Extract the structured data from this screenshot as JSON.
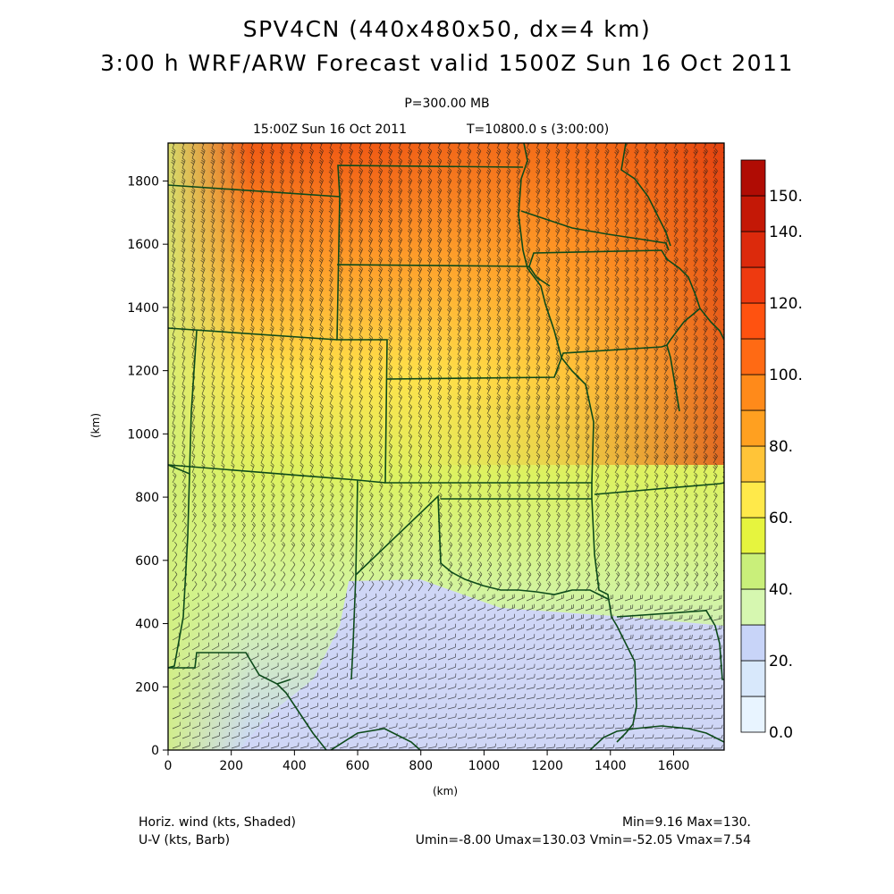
{
  "header": {
    "title1": "SPV4CN (440x480x50, dx=4 km)",
    "title2": "3:00 h WRF/ARW Forecast valid 1500Z Sun 16 Oct 2011",
    "level": "P=300.00 MB",
    "valid": "15:00Z Sun 16 Oct 2011",
    "time": "T=10800.0 s (3:00:00)"
  },
  "axes": {
    "xlabel": "(km)",
    "ylabel": "(km)",
    "x_ticks": [
      "0",
      "200",
      "400",
      "600",
      "800",
      "1000",
      "1200",
      "1400",
      "1600"
    ],
    "y_ticks": [
      "0",
      "200",
      "400",
      "600",
      "800",
      "1000",
      "1200",
      "1400",
      "1600",
      "1800"
    ],
    "x_range": [
      0,
      1760
    ],
    "y_range": [
      0,
      1920
    ]
  },
  "colorbar": {
    "labels": [
      "0.0",
      "20.",
      "40.",
      "60.",
      "80.",
      "100.",
      "120.",
      "140.",
      "150."
    ],
    "colors": [
      "#e8f4ff",
      "#d8e8fb",
      "#c8d4f8",
      "#d6f7b0",
      "#c9ef7a",
      "#e6f43e",
      "#ffe94a",
      "#ffc438",
      "#ffa020",
      "#ff8a1a",
      "#ff6a14",
      "#ff5210",
      "#ee3a10",
      "#dc2a0c",
      "#c41806",
      "#b00c04"
    ]
  },
  "footer": {
    "field1": "Horiz. wind (kts, Shaded)",
    "field2": "U-V (kts, Barb)",
    "minmax": "Min=9.16 Max=130.",
    "uvrange": "Umin=-8.00 Umax=130.03 Vmin=-52.05 Vmax=7.54"
  },
  "map": {
    "field": "Horiz. wind (kts)",
    "map_colors": {
      "border": "#0d4a1a",
      "barb": "#1a1a1a"
    }
  }
}
